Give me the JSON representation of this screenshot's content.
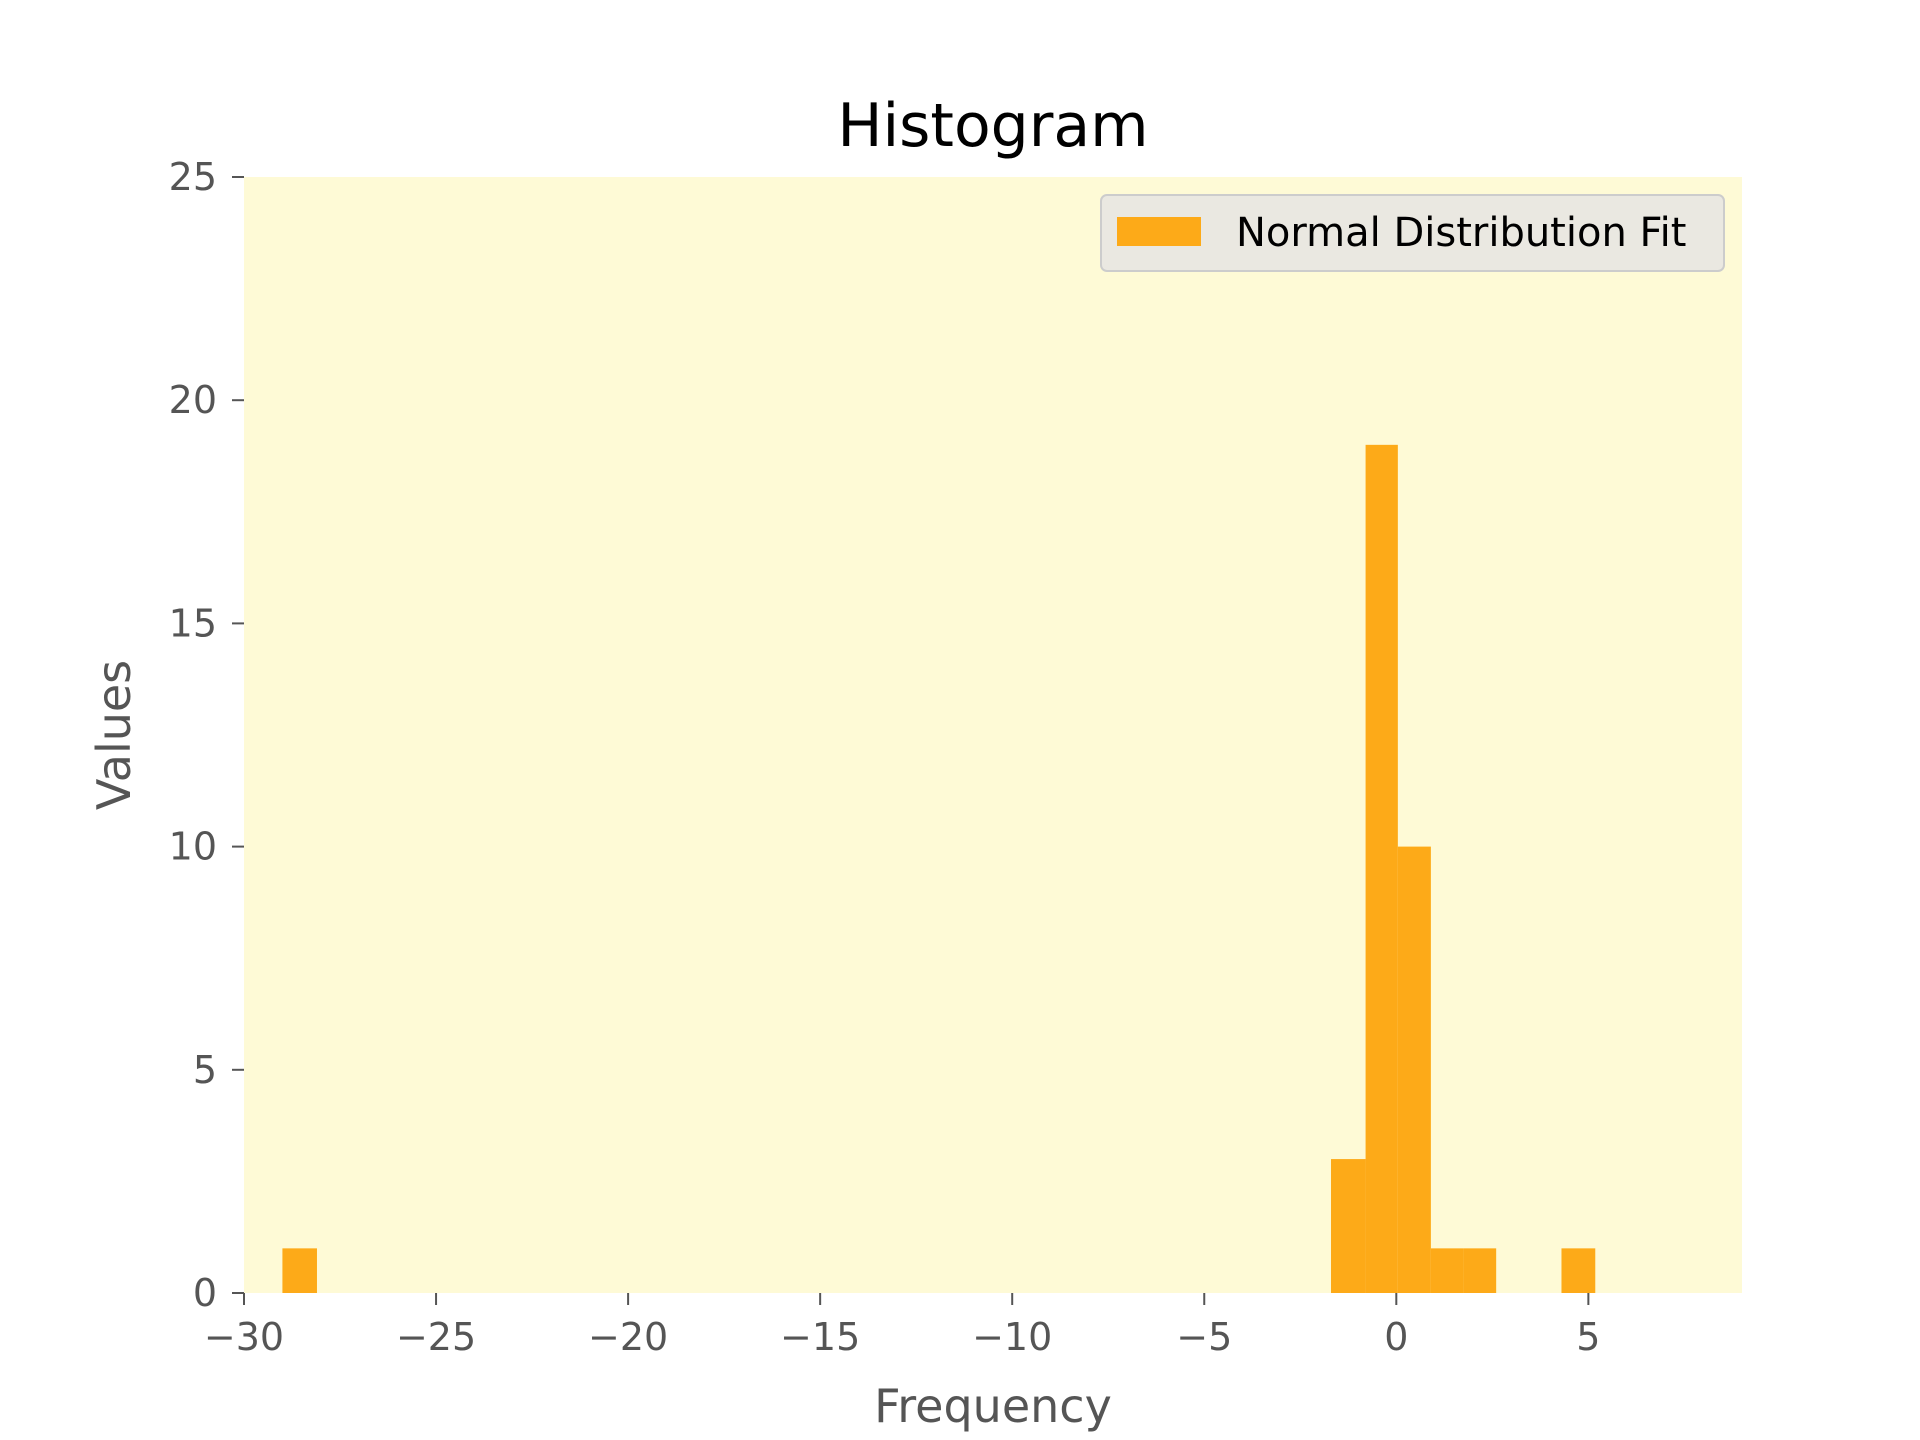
{
  "chart_data": {
    "type": "bar",
    "title": "Histogram",
    "xlabel": "Frequency",
    "ylabel": "Values",
    "xlim": [
      -30,
      9
    ],
    "ylim": [
      0,
      25
    ],
    "xticks": [
      -30,
      -25,
      -20,
      -15,
      -10,
      -5,
      0,
      5
    ],
    "yticks": [
      0,
      5,
      10,
      15,
      20,
      25
    ],
    "grid": false,
    "legend_position": "top-right",
    "series": [
      {
        "name": "Normal Distribution Fit",
        "color": "#FDAA18",
        "bins": [
          {
            "x0": -29.0,
            "x1": -28.1,
            "count": 1
          },
          {
            "x0": -1.7,
            "x1": -0.8,
            "count": 3
          },
          {
            "x0": -0.8,
            "x1": 0.04,
            "count": 19
          },
          {
            "x0": 0.04,
            "x1": 0.9,
            "count": 10
          },
          {
            "x0": 0.9,
            "x1": 1.76,
            "count": 1
          },
          {
            "x0": 1.76,
            "x1": 2.6,
            "count": 1
          },
          {
            "x0": 4.3,
            "x1": 5.18,
            "count": 1
          }
        ]
      }
    ],
    "colors": {
      "plot_background": "#FEFAD6",
      "legend_background": "#EAE8E1",
      "legend_border": "#CCCCCC",
      "axis_text": "#555555"
    }
  }
}
